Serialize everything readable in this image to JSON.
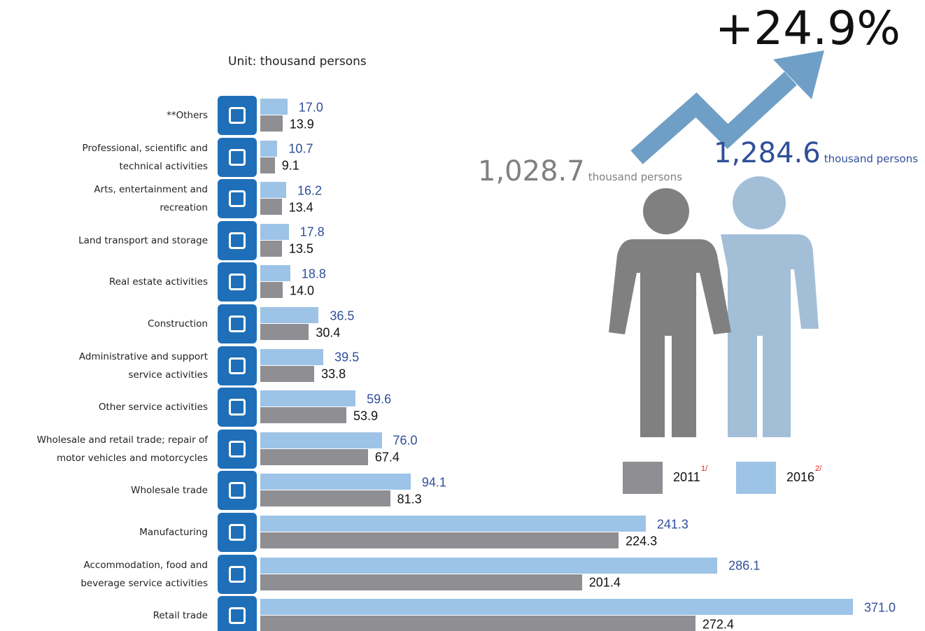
{
  "chart_data": {
    "type": "bar",
    "orientation": "horizontal",
    "unit": "Unit: thousand persons",
    "categories": [
      "**Others",
      "Professional, scientific and\ntechnical activities",
      "Arts, entertainment and\nrecreation",
      "Land transport and storage",
      "Real estate activities",
      "Construction",
      "Administrative and support\nservice activities",
      "Other service activities",
      "Wholesale and retail trade; repair of\nmotor vehicles and motorcycles",
      "Wholesale trade",
      "Manufacturing",
      "Accommodation, food and\nbeverage service activities",
      "Retail trade"
    ],
    "series": [
      {
        "name": "2011",
        "note": "1/",
        "color": "#8e8e93",
        "label_color": "#111111",
        "values": [
          13.9,
          9.1,
          13.4,
          13.5,
          14.0,
          30.4,
          33.8,
          53.9,
          67.4,
          81.3,
          224.3,
          201.4,
          272.4
        ],
        "value_labels": [
          "13.9",
          "9.1",
          "13.4",
          "13.5",
          "14.0",
          "30.4",
          "33.8",
          "53.9",
          "67.4",
          "81.3",
          "224.3",
          "201.4",
          "272.4"
        ]
      },
      {
        "name": "2016",
        "note": "2/",
        "color": "#9dc3e6",
        "label_color": "#2f4f9a",
        "values": [
          17.0,
          10.7,
          16.2,
          17.8,
          18.8,
          36.5,
          39.5,
          59.6,
          76.0,
          94.1,
          241.3,
          286.1,
          371.0
        ],
        "value_labels": [
          "17.0",
          "10.7",
          "16.2",
          "17.8",
          "18.8",
          "36.5",
          "39.5",
          "59.6",
          "76.0",
          "94.1",
          "241.3",
          "286.1",
          "371.0"
        ]
      }
    ],
    "growth": {
      "value": 24.9,
      "label": "+24.9%"
    },
    "totals": [
      {
        "value": 1028.7,
        "label": "1,028.7",
        "unit": "thousand persons",
        "color": "#808080"
      },
      {
        "value": 1284.6,
        "label": "1,284.6",
        "unit": "thousand persons",
        "color": "#2f4f9a"
      }
    ]
  }
}
